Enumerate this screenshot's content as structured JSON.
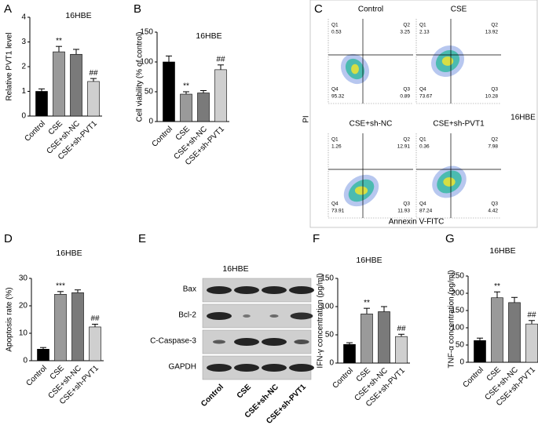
{
  "chart_data": [
    {
      "type": "bar",
      "panel_label": "A",
      "title": "16HBE",
      "y_label": "Relative PVT1 level",
      "categories": [
        "Control",
        "CSE",
        "CSE+sh-NC",
        "CSE+sh-PVT1"
      ],
      "values": [
        1.0,
        2.6,
        2.5,
        1.4
      ],
      "errors": [
        0.1,
        0.22,
        0.2,
        0.12
      ],
      "annotations": [
        null,
        "**",
        null,
        "##"
      ],
      "colors": [
        "#000000",
        "#9a9a9a",
        "#7a7a7a",
        "#cfcfcf"
      ],
      "ylim": [
        0,
        4
      ],
      "yticks": [
        0,
        1,
        2,
        3,
        4
      ]
    },
    {
      "type": "bar",
      "panel_label": "B",
      "title": "16HBE",
      "y_label": "Cell viability (% of control)",
      "categories": [
        "Control",
        "CSE",
        "CSE+sh-NC",
        "CSE+sh-PVT1"
      ],
      "values": [
        100,
        46,
        48,
        87
      ],
      "errors": [
        10,
        4,
        4,
        8
      ],
      "annotations": [
        null,
        "**",
        null,
        "##"
      ],
      "colors": [
        "#000000",
        "#9a9a9a",
        "#7a7a7a",
        "#cfcfcf"
      ],
      "ylim": [
        0,
        150
      ],
      "yticks": [
        0,
        50,
        100,
        150
      ]
    },
    {
      "type": "bar",
      "panel_label": "D",
      "title": "16HBE",
      "y_label": "Apoptosis rate (%)",
      "categories": [
        "Control",
        "CSE",
        "CSE+sh-NC",
        "CSE+sh-PVT1"
      ],
      "values": [
        4.2,
        24.2,
        24.8,
        12.3
      ],
      "errors": [
        0.6,
        1.0,
        1.0,
        1.0
      ],
      "annotations": [
        null,
        "***",
        null,
        "##"
      ],
      "colors": [
        "#000000",
        "#9a9a9a",
        "#7a7a7a",
        "#cfcfcf"
      ],
      "ylim": [
        0,
        30
      ],
      "yticks": [
        0,
        10,
        20,
        30
      ]
    },
    {
      "type": "bar",
      "panel_label": "F",
      "title": "16HBE",
      "y_label": "IFN-γ concentration (pg/ml)",
      "categories": [
        "Control",
        "CSE",
        "CSE+sh-NC",
        "CSE+sh-PVT1"
      ],
      "values": [
        33,
        87,
        91,
        47
      ],
      "errors": [
        3,
        10,
        9,
        4
      ],
      "annotations": [
        null,
        "**",
        null,
        "##"
      ],
      "colors": [
        "#000000",
        "#9a9a9a",
        "#7a7a7a",
        "#cfcfcf"
      ],
      "ylim": [
        0,
        150
      ],
      "yticks": [
        0,
        50,
        100,
        150
      ]
    },
    {
      "type": "bar",
      "panel_label": "G",
      "title": "16HBE",
      "y_label": "TNF-α concentration (pg/ml)",
      "categories": [
        "Control",
        "CSE",
        "CSE+sh-NC",
        "CSE+sh-PVT1"
      ],
      "values": [
        63,
        187,
        173,
        111
      ],
      "errors": [
        7,
        17,
        15,
        10
      ],
      "annotations": [
        null,
        "**",
        null,
        "##"
      ],
      "colors": [
        "#000000",
        "#9a9a9a",
        "#7a7a7a",
        "#cfcfcf"
      ],
      "ylim": [
        0,
        250
      ],
      "yticks": [
        0,
        50,
        100,
        150,
        200,
        250
      ]
    }
  ],
  "flow": {
    "panel_label": "C",
    "y_label": "PI",
    "x_label": "Annexin V-FITC",
    "cell_line": "16HBE",
    "plots": [
      {
        "title": "Control",
        "quadrants": [
          {
            "name": "Q1",
            "value": "0.53"
          },
          {
            "name": "Q2",
            "value": "3.25"
          },
          {
            "name": "Q3",
            "value": "0.89"
          },
          {
            "name": "Q4",
            "value": "95.32"
          }
        ]
      },
      {
        "title": "CSE",
        "quadrants": [
          {
            "name": "Q1",
            "value": "2.13"
          },
          {
            "name": "Q2",
            "value": "13.92"
          },
          {
            "name": "Q3",
            "value": "10.28"
          },
          {
            "name": "Q4",
            "value": "73.67"
          }
        ]
      },
      {
        "title": "CSE+sh-NC",
        "quadrants": [
          {
            "name": "Q1",
            "value": "1.26"
          },
          {
            "name": "Q2",
            "value": "12.91"
          },
          {
            "name": "Q3",
            "value": "11.93"
          },
          {
            "name": "Q4",
            "value": "73.91"
          }
        ]
      },
      {
        "title": "CSE+sh-PVT1",
        "quadrants": [
          {
            "name": "Q1",
            "value": "0.36"
          },
          {
            "name": "Q2",
            "value": "7.98"
          },
          {
            "name": "Q3",
            "value": "4.42"
          },
          {
            "name": "Q4",
            "value": "87.24"
          }
        ]
      }
    ]
  },
  "blot": {
    "panel_label": "E",
    "title": "16HBE",
    "rows": [
      "Bax",
      "Bcl-2",
      "C-Caspase-3",
      "GAPDH"
    ],
    "columns": [
      "Control",
      "CSE",
      "CSE+sh-NC",
      "CSE+sh-PVT1"
    ]
  }
}
